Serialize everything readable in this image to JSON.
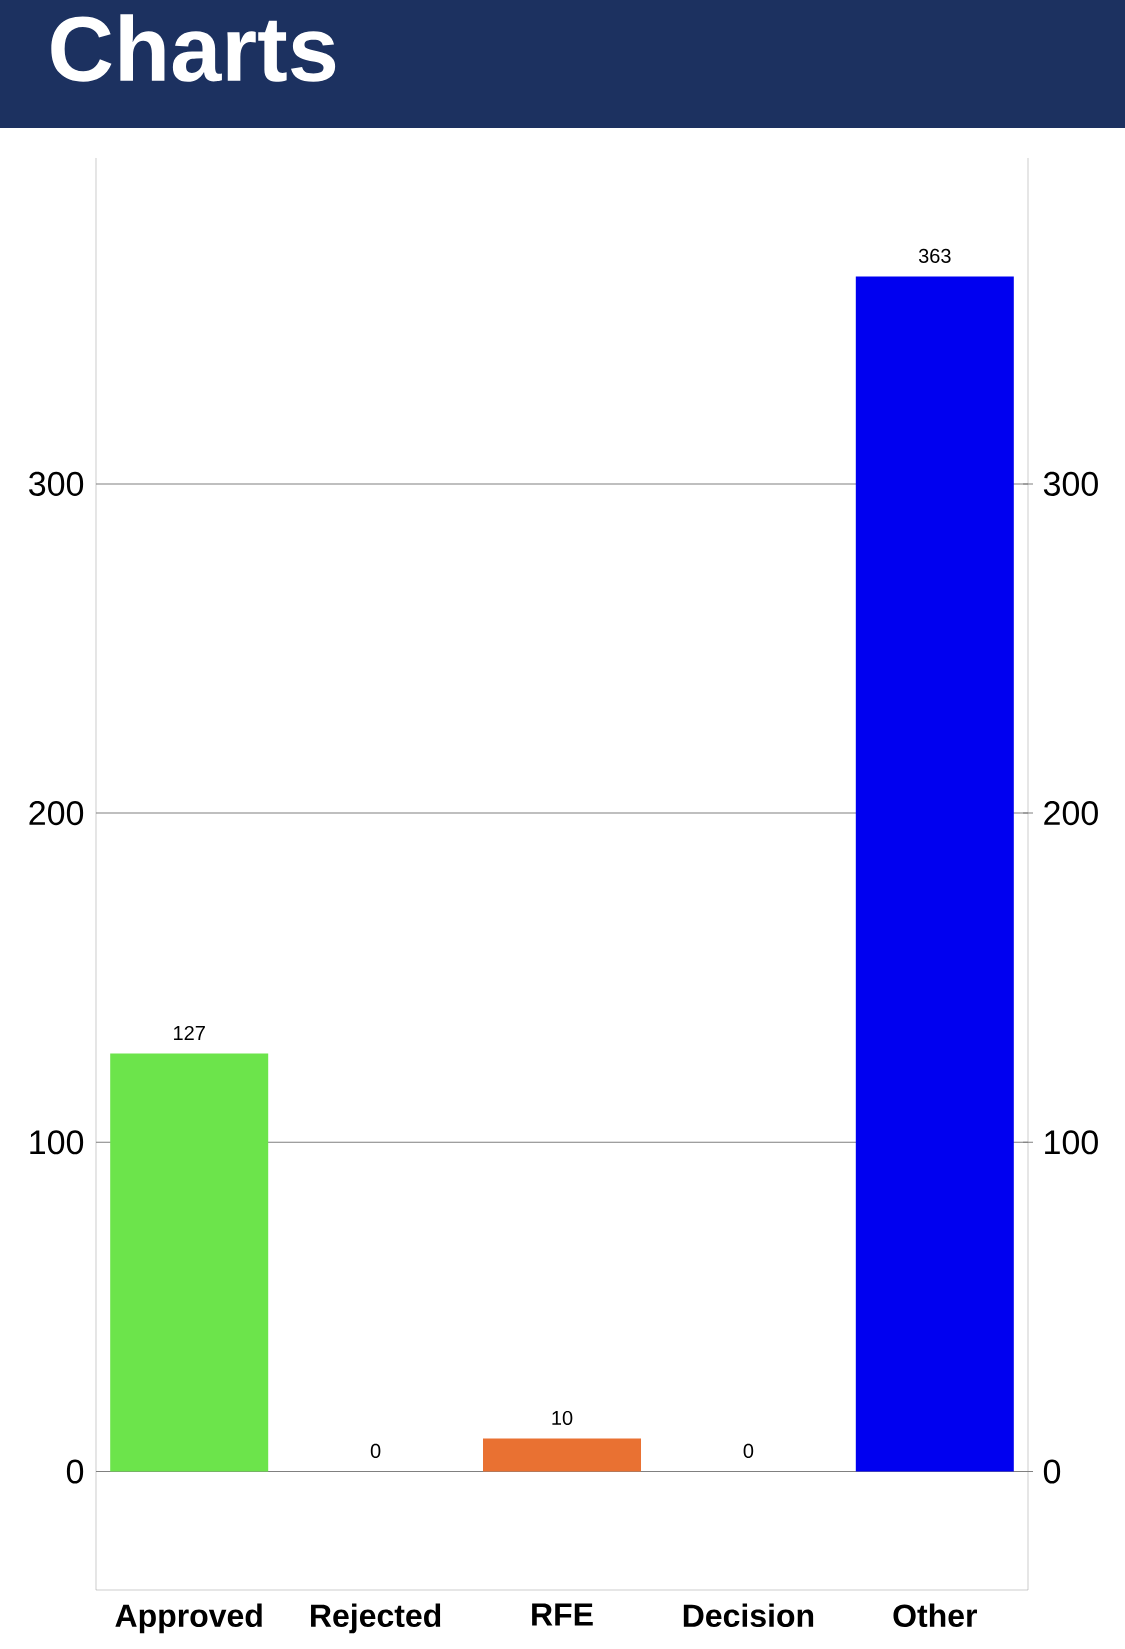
{
  "chart_data": {
    "type": "bar",
    "title": "Charts",
    "categories": [
      "Approved",
      "Rejected",
      "RFE",
      "Decision",
      "Other"
    ],
    "values": [
      127,
      0,
      10,
      0,
      363
    ],
    "colors": [
      "#6ce44b",
      null,
      "#e97132",
      null,
      "#0000f0"
    ],
    "ylim": [
      -36,
      399
    ],
    "yticks": [
      0,
      100,
      200,
      300
    ],
    "y2lim": [
      -36,
      399
    ],
    "y2ticks": [
      0,
      100,
      200,
      300
    ],
    "grid": "y",
    "data_labels": true
  }
}
